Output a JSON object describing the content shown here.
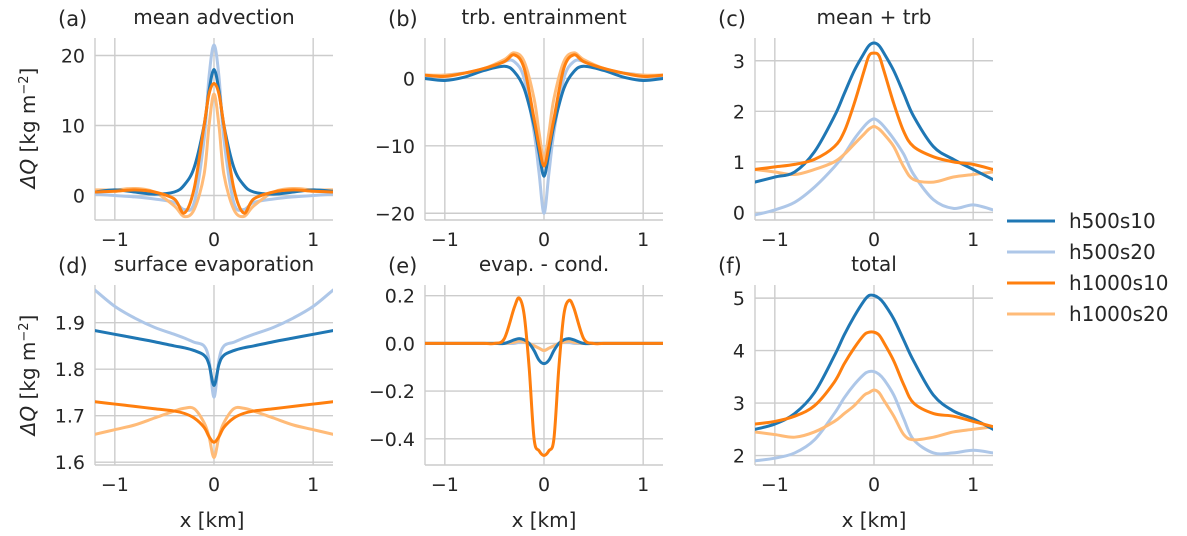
{
  "figure": {
    "y_label_prefix": "ΔQ",
    "y_label_unit_base": " [kg m",
    "y_label_unit_exp": "−2",
    "y_label_unit_end": "]",
    "x_label": "x [km]"
  },
  "legend": {
    "items": [
      {
        "label": "h500s10",
        "color": "#1f77b4"
      },
      {
        "label": "h500s20",
        "color": "#aec7e8"
      },
      {
        "label": "h1000s10",
        "color": "#ff7f0e"
      },
      {
        "label": "h1000s20",
        "color": "#ffbb78"
      }
    ]
  },
  "chart_data": [
    {
      "type": "line",
      "panel": "(a)",
      "title": "mean advection",
      "xlim": [
        -1.2,
        1.2
      ],
      "ylim": [
        -3.5,
        22.5
      ],
      "xticks": [
        -1,
        0,
        1
      ],
      "xtick_labels": [
        "−1",
        "0",
        "1"
      ],
      "yticks": [
        0,
        10,
        20
      ],
      "ytick_labels": [
        "0",
        "10",
        "20"
      ],
      "x": [
        -1.2,
        -1.0,
        -0.8,
        -0.6,
        -0.4,
        -0.3,
        -0.2,
        -0.1,
        -0.05,
        0,
        0.05,
        0.1,
        0.2,
        0.3,
        0.4,
        0.6,
        0.8,
        1.0,
        1.2
      ],
      "series": [
        {
          "name": "h500s10",
          "values": [
            0.5,
            0.8,
            0.5,
            0.2,
            0.5,
            1.5,
            4,
            10,
            15,
            18,
            15,
            10,
            4,
            1.5,
            0.5,
            0.2,
            0.5,
            0.8,
            0.6
          ]
        },
        {
          "name": "h500s20",
          "values": [
            0.2,
            0,
            -0.2,
            -0.5,
            -1,
            -2,
            -1,
            8,
            17,
            21.5,
            17,
            8,
            -1,
            -2,
            -1,
            -0.5,
            -0.2,
            0,
            0.2
          ]
        },
        {
          "name": "h1000s10",
          "values": [
            0.5,
            0.6,
            0.8,
            0.5,
            -0.5,
            -2.5,
            1,
            10,
            14.5,
            16,
            14.5,
            10,
            1,
            -2.5,
            -0.5,
            0.5,
            0.8,
            0.6,
            0.5
          ]
        },
        {
          "name": "h1000s20",
          "values": [
            0.8,
            0.8,
            1,
            0.5,
            -1.5,
            -3,
            -2,
            3,
            10,
            14.5,
            10,
            3,
            -2,
            -3,
            -1.5,
            0.5,
            1,
            0.8,
            0.8
          ]
        }
      ]
    },
    {
      "type": "line",
      "panel": "(b)",
      "title": "trb. entrainment",
      "xlim": [
        -1.2,
        1.2
      ],
      "ylim": [
        -21,
        6
      ],
      "xticks": [
        -1,
        0,
        1
      ],
      "xtick_labels": [
        "−1",
        "0",
        "1"
      ],
      "yticks": [
        0,
        -10,
        -20
      ],
      "ytick_labels": [
        "0",
        "−10",
        "−20"
      ],
      "x": [
        -1.2,
        -1.0,
        -0.8,
        -0.6,
        -0.4,
        -0.3,
        -0.2,
        -0.1,
        -0.05,
        0,
        0.05,
        0.1,
        0.2,
        0.3,
        0.4,
        0.6,
        0.8,
        1.0,
        1.2
      ],
      "series": [
        {
          "name": "h500s10",
          "values": [
            0,
            -0.3,
            0.2,
            1.2,
            1.8,
            1.0,
            -1.5,
            -7,
            -11,
            -14.5,
            -11,
            -7,
            -1.5,
            1.0,
            1.8,
            1.2,
            0.2,
            -0.3,
            0
          ]
        },
        {
          "name": "h500s20",
          "values": [
            0.2,
            0.5,
            0.8,
            1.2,
            2.5,
            2.5,
            0,
            -8,
            -14,
            -20,
            -14,
            -8,
            0,
            2.5,
            2.5,
            1.2,
            0.8,
            0.5,
            0.2
          ]
        },
        {
          "name": "h1000s10",
          "values": [
            0.5,
            0.3,
            0.8,
            1.5,
            2.5,
            3.5,
            1.5,
            -6,
            -10,
            -13,
            -10,
            -6,
            1.5,
            3.5,
            2.5,
            1.5,
            0.8,
            0.3,
            0.5
          ]
        },
        {
          "name": "h1000s20",
          "values": [
            0.5,
            0.5,
            0.8,
            1.5,
            2.8,
            3.8,
            2.5,
            -3,
            -8,
            -12,
            -8,
            -3,
            2.5,
            3.8,
            2.8,
            1.5,
            0.8,
            0.5,
            0.5
          ]
        }
      ]
    },
    {
      "type": "line",
      "panel": "(c)",
      "title": "mean + trb",
      "xlim": [
        -1.2,
        1.2
      ],
      "ylim": [
        -0.15,
        3.45
      ],
      "xticks": [
        -1,
        0,
        1
      ],
      "xtick_labels": [
        "−1",
        "0",
        "1"
      ],
      "yticks": [
        0,
        1,
        2,
        3
      ],
      "ytick_labels": [
        "0",
        "1",
        "2",
        "3"
      ],
      "x": [
        -1.2,
        -1.0,
        -0.8,
        -0.6,
        -0.4,
        -0.3,
        -0.2,
        -0.1,
        -0.05,
        0,
        0.05,
        0.1,
        0.2,
        0.3,
        0.4,
        0.6,
        0.8,
        1.0,
        1.2
      ],
      "series": [
        {
          "name": "h500s10",
          "values": [
            0.6,
            0.7,
            0.8,
            1.2,
            1.9,
            2.35,
            2.8,
            3.15,
            3.3,
            3.35,
            3.3,
            3.15,
            2.8,
            2.35,
            1.9,
            1.3,
            1.05,
            0.85,
            0.65
          ]
        },
        {
          "name": "h500s20",
          "values": [
            -0.05,
            0.05,
            0.2,
            0.5,
            0.9,
            1.15,
            1.45,
            1.7,
            1.8,
            1.85,
            1.8,
            1.7,
            1.45,
            1.15,
            0.75,
            0.25,
            0.08,
            0.15,
            0.05
          ]
        },
        {
          "name": "h1000s10",
          "values": [
            0.85,
            0.9,
            0.95,
            1.05,
            1.3,
            1.6,
            2.15,
            2.8,
            3.1,
            3.15,
            3.1,
            2.8,
            2.15,
            1.6,
            1.3,
            1.1,
            1.0,
            0.95,
            0.85
          ]
        },
        {
          "name": "h1000s20",
          "values": [
            0.85,
            0.8,
            0.75,
            0.85,
            1.0,
            1.15,
            1.35,
            1.55,
            1.65,
            1.7,
            1.65,
            1.55,
            1.3,
            0.9,
            0.65,
            0.6,
            0.7,
            0.75,
            0.8
          ]
        }
      ]
    },
    {
      "type": "line",
      "panel": "(d)",
      "title": "surface evaporation",
      "xlim": [
        -1.2,
        1.2
      ],
      "ylim": [
        1.594,
        1.981
      ],
      "xticks": [
        -1,
        0,
        1
      ],
      "xtick_labels": [
        "−1",
        "0",
        "1"
      ],
      "yticks": [
        1.6,
        1.7,
        1.8,
        1.9
      ],
      "ytick_labels": [
        "1.6",
        "1.7",
        "1.8",
        "1.9"
      ],
      "x": [
        -1.2,
        -1.0,
        -0.8,
        -0.6,
        -0.4,
        -0.3,
        -0.2,
        -0.1,
        -0.05,
        0,
        0.05,
        0.1,
        0.2,
        0.3,
        0.4,
        0.6,
        0.8,
        1.0,
        1.2
      ],
      "series": [
        {
          "name": "h500s10",
          "values": [
            1.883,
            1.875,
            1.867,
            1.859,
            1.85,
            1.846,
            1.84,
            1.83,
            1.81,
            1.765,
            1.81,
            1.83,
            1.84,
            1.846,
            1.85,
            1.859,
            1.867,
            1.875,
            1.883
          ]
        },
        {
          "name": "h500s20",
          "values": [
            1.97,
            1.935,
            1.91,
            1.89,
            1.875,
            1.867,
            1.858,
            1.85,
            1.82,
            1.74,
            1.82,
            1.85,
            1.858,
            1.867,
            1.875,
            1.89,
            1.91,
            1.935,
            1.97
          ]
        },
        {
          "name": "h1000s10",
          "values": [
            1.73,
            1.725,
            1.72,
            1.715,
            1.71,
            1.705,
            1.695,
            1.675,
            1.655,
            1.643,
            1.655,
            1.675,
            1.695,
            1.705,
            1.71,
            1.715,
            1.72,
            1.725,
            1.73
          ]
        },
        {
          "name": "h1000s20",
          "values": [
            1.66,
            1.67,
            1.68,
            1.695,
            1.71,
            1.716,
            1.715,
            1.685,
            1.655,
            1.61,
            1.655,
            1.685,
            1.715,
            1.716,
            1.71,
            1.695,
            1.68,
            1.67,
            1.66
          ]
        }
      ]
    },
    {
      "type": "line",
      "panel": "(e)",
      "title": "evap. - cond.",
      "xlim": [
        -1.2,
        1.2
      ],
      "ylim": [
        -0.51,
        0.245
      ],
      "xticks": [
        -1,
        0,
        1
      ],
      "xtick_labels": [
        "−1",
        "0",
        "1"
      ],
      "yticks": [
        0.2,
        0.0,
        -0.2,
        -0.4
      ],
      "ytick_labels": [
        "0.2",
        "0.0",
        "−0.2",
        "−0.4"
      ],
      "x": [
        -1.2,
        -1.0,
        -0.8,
        -0.6,
        -0.5,
        -0.4,
        -0.3,
        -0.25,
        -0.2,
        -0.15,
        -0.1,
        -0.05,
        0,
        0.05,
        0.1,
        0.15,
        0.2,
        0.25,
        0.3,
        0.4,
        0.5,
        0.6,
        0.8,
        1.0,
        1.2
      ],
      "series": [
        {
          "name": "h500s10",
          "values": [
            0,
            0,
            0,
            0,
            0,
            0,
            0.015,
            0.02,
            0.015,
            0,
            -0.03,
            -0.07,
            -0.085,
            -0.07,
            -0.03,
            0,
            0.015,
            0.02,
            0.015,
            0,
            0,
            0,
            0,
            0,
            0
          ]
        },
        {
          "name": "h500s20",
          "values": [
            0,
            0,
            0,
            0,
            0,
            0,
            0,
            0.005,
            0.005,
            0,
            -0.01,
            -0.02,
            -0.03,
            -0.02,
            -0.01,
            0,
            0.005,
            0.005,
            0,
            0,
            0,
            0,
            0,
            0,
            0
          ]
        },
        {
          "name": "h1000s10",
          "values": [
            0,
            0,
            0,
            0,
            0,
            0.02,
            0.15,
            0.19,
            0.12,
            -0.1,
            -0.4,
            -0.45,
            -0.47,
            -0.45,
            -0.4,
            -0.1,
            0.12,
            0.18,
            0.15,
            0.02,
            0,
            0,
            0,
            0,
            0
          ]
        },
        {
          "name": "h1000s20",
          "values": [
            0,
            0,
            0,
            0,
            0,
            0,
            0.005,
            0.01,
            0.005,
            0,
            -0.01,
            -0.02,
            -0.03,
            -0.02,
            -0.01,
            0,
            0.005,
            0.01,
            0.005,
            0,
            0,
            0,
            0,
            0,
            0
          ]
        }
      ]
    },
    {
      "type": "line",
      "panel": "(f)",
      "title": "total",
      "xlim": [
        -1.2,
        1.2
      ],
      "ylim": [
        1.82,
        5.25
      ],
      "xticks": [
        -1,
        0,
        1
      ],
      "xtick_labels": [
        "−1",
        "0",
        "1"
      ],
      "yticks": [
        2,
        3,
        4,
        5
      ],
      "ytick_labels": [
        "2",
        "3",
        "4",
        "5"
      ],
      "x": [
        -1.2,
        -1.0,
        -0.8,
        -0.6,
        -0.4,
        -0.3,
        -0.2,
        -0.1,
        -0.05,
        0,
        0.05,
        0.1,
        0.2,
        0.3,
        0.4,
        0.6,
        0.8,
        1.0,
        1.2
      ],
      "series": [
        {
          "name": "h500s10",
          "values": [
            2.5,
            2.6,
            2.8,
            3.2,
            3.9,
            4.3,
            4.65,
            4.95,
            5.05,
            5.05,
            5.0,
            4.9,
            4.6,
            4.2,
            3.8,
            3.15,
            2.85,
            2.7,
            2.5
          ]
        },
        {
          "name": "h500s20",
          "values": [
            1.9,
            1.95,
            2.05,
            2.3,
            2.8,
            3.1,
            3.35,
            3.55,
            3.6,
            3.6,
            3.55,
            3.45,
            3.15,
            2.7,
            2.3,
            2.05,
            2.05,
            2.1,
            2.05
          ]
        },
        {
          "name": "h1000s10",
          "values": [
            2.6,
            2.65,
            2.75,
            2.95,
            3.4,
            3.75,
            4.05,
            4.3,
            4.35,
            4.35,
            4.3,
            4.15,
            3.8,
            3.35,
            3.0,
            2.8,
            2.75,
            2.65,
            2.55
          ]
        },
        {
          "name": "h1000s20",
          "values": [
            2.45,
            2.4,
            2.35,
            2.45,
            2.65,
            2.8,
            2.95,
            3.15,
            3.2,
            3.25,
            3.2,
            3.05,
            2.75,
            2.4,
            2.3,
            2.35,
            2.45,
            2.5,
            2.55
          ]
        }
      ]
    }
  ]
}
